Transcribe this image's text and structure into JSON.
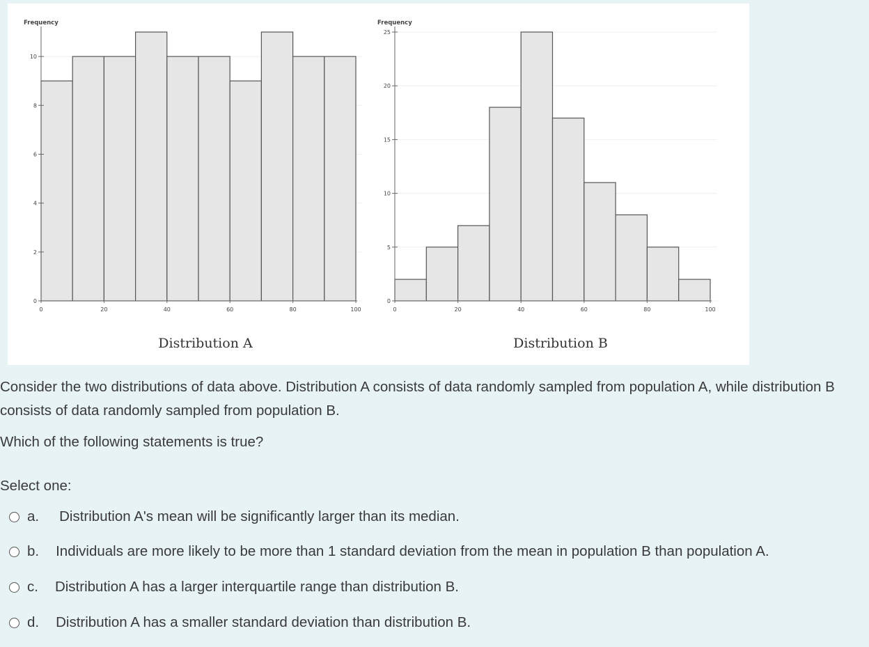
{
  "chart_data": [
    {
      "type": "bar",
      "title": "Distribution A",
      "ylabel": "Frequency",
      "xlabel": "",
      "bin_edges": [
        0,
        10,
        20,
        30,
        40,
        50,
        60,
        70,
        80,
        90,
        100
      ],
      "values": [
        9,
        10,
        10,
        11,
        10,
        10,
        9,
        11,
        10,
        10
      ],
      "ylim": [
        0,
        11
      ],
      "yticks": [
        0,
        2,
        4,
        6,
        8,
        10
      ],
      "xticks": [
        0,
        20,
        40,
        60,
        80,
        100
      ],
      "grid": true
    },
    {
      "type": "bar",
      "title": "Distribution B",
      "ylabel": "Frequency",
      "xlabel": "",
      "bin_edges": [
        0,
        10,
        20,
        30,
        40,
        50,
        60,
        70,
        80,
        90,
        100
      ],
      "values": [
        2,
        5,
        7,
        18,
        25,
        17,
        11,
        8,
        5,
        2
      ],
      "ylim": [
        0,
        25
      ],
      "yticks": [
        0,
        5,
        10,
        15,
        20,
        25
      ],
      "xticks": [
        0,
        20,
        40,
        60,
        80,
        100
      ],
      "grid": true
    }
  ],
  "colors": {
    "page_background": "#e7f3f5",
    "bar_fill": "#e6e6e6",
    "bar_stroke": "#555555",
    "text": "#3a3a3a"
  },
  "question": {
    "intro": "Consider the two distributions of data above. Distribution A consists of data randomly sampled from population A, while distribution B consists of data randomly sampled from population B.",
    "prompt": "Which of the following statements is true?",
    "select_label": "Select one:"
  },
  "options": [
    {
      "letter": "a.",
      "text": "Distribution A's mean will be significantly larger than its median.",
      "selected": false
    },
    {
      "letter": "b.",
      "text": "Individuals are more likely to be more than 1 standard deviation from the mean in population B than population A.",
      "selected": false
    },
    {
      "letter": "c.",
      "text": "Distribution A has a larger interquartile range than distribution B.",
      "selected": false
    },
    {
      "letter": "d.",
      "text": "Distribution A has a smaller standard deviation than distribution B.",
      "selected": false
    }
  ]
}
